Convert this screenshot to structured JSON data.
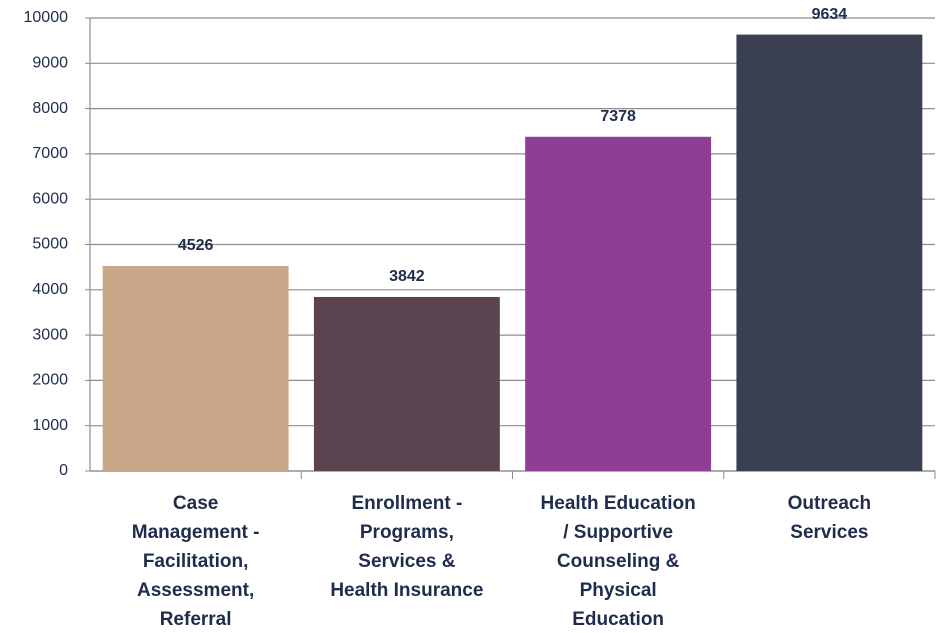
{
  "chart_data": {
    "type": "bar",
    "categories": [
      "Case\nManagement -\nFacilitation,\nAssessment,\nReferral",
      "Enrollment -\nPrograms,\nServices &\nHealth Insurance",
      "Health Education\n/ Supportive\nCounseling &\nPhysical\nEducation",
      "Outreach\nServices"
    ],
    "values": [
      4526,
      3842,
      7378,
      9634
    ],
    "colors": [
      "#c8a888",
      "#5b4450",
      "#8e3f95",
      "#3b3f52"
    ],
    "ylim": [
      0,
      10000
    ],
    "yticks": [
      0,
      1000,
      2000,
      3000,
      4000,
      5000,
      6000,
      7000,
      8000,
      9000,
      10000
    ],
    "grid": true
  }
}
